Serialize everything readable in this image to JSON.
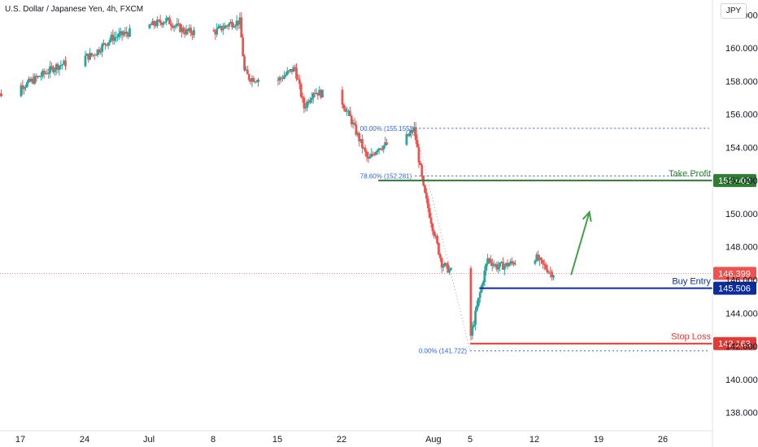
{
  "header": {
    "symbol_title": "U.S. Dollar / Japanese Yen, 4h, FXCM",
    "currency": "JPY"
  },
  "colors": {
    "up": "#26a69a",
    "down": "#ef5350",
    "take_profit": "#2e7d32",
    "buy_entry": "#0d2c9e",
    "stop_loss": "#e53935",
    "current_price": "#ef5350",
    "fib": "#2962ff",
    "arrow": "#43a047"
  },
  "chart_data": {
    "type": "candlestick",
    "x_ticks": [
      {
        "label": "17",
        "date": "2024-06-17"
      },
      {
        "label": "24",
        "date": "2024-06-24"
      },
      {
        "label": "Jul",
        "date": "2024-07-01"
      },
      {
        "label": "8",
        "date": "2024-07-08"
      },
      {
        "label": "15",
        "date": "2024-07-15"
      },
      {
        "label": "22",
        "date": "2024-07-22"
      },
      {
        "label": "Aug",
        "date": "2024-08-01"
      },
      {
        "label": "5",
        "date": "2024-08-05"
      },
      {
        "label": "12",
        "date": "2024-08-12"
      },
      {
        "label": "19",
        "date": "2024-08-19"
      },
      {
        "label": "26",
        "date": "2024-08-26"
      }
    ],
    "y_ticks": [
      "138.000",
      "140.000",
      "142.000",
      "144.000",
      "146.000",
      "148.000",
      "150.000",
      "152.000",
      "154.000",
      "156.000",
      "158.000",
      "160.000",
      "162.000"
    ],
    "ylim": [
      136.9,
      162.9
    ],
    "price_anchors": [
      {
        "date": "2024-06-14",
        "price": 157.0
      },
      {
        "date": "2024-06-18",
        "price": 157.9
      },
      {
        "date": "2024-06-21",
        "price": 158.9
      },
      {
        "date": "2024-06-25",
        "price": 159.6
      },
      {
        "date": "2024-06-27",
        "price": 160.6
      },
      {
        "date": "2024-07-01",
        "price": 161.3
      },
      {
        "date": "2024-07-03",
        "price": 161.7
      },
      {
        "date": "2024-07-05",
        "price": 161.0
      },
      {
        "date": "2024-07-08",
        "price": 160.9
      },
      {
        "date": "2024-07-10",
        "price": 161.5
      },
      {
        "date": "2024-07-11",
        "price": 161.6
      },
      {
        "date": "2024-07-11T12",
        "price": 158.6
      },
      {
        "date": "2024-07-12",
        "price": 158.2
      },
      {
        "date": "2024-07-15",
        "price": 158.0
      },
      {
        "date": "2024-07-17",
        "price": 158.8
      },
      {
        "date": "2024-07-18",
        "price": 156.4
      },
      {
        "date": "2024-07-19",
        "price": 157.4
      },
      {
        "date": "2024-07-22",
        "price": 156.9
      },
      {
        "date": "2024-07-23",
        "price": 155.8
      },
      {
        "date": "2024-07-25",
        "price": 153.2
      },
      {
        "date": "2024-07-26",
        "price": 154.0
      },
      {
        "date": "2024-07-29",
        "price": 154.5
      },
      {
        "date": "2024-07-30",
        "price": 155.1
      },
      {
        "date": "2024-07-31",
        "price": 151.5
      },
      {
        "date": "2024-08-01",
        "price": 149.2
      },
      {
        "date": "2024-08-02",
        "price": 147.0
      },
      {
        "date": "2024-08-03",
        "price": 146.5
      },
      {
        "date": "2024-08-05",
        "price": 142.2
      },
      {
        "date": "2024-08-06",
        "price": 144.8
      },
      {
        "date": "2024-08-07",
        "price": 147.3
      },
      {
        "date": "2024-08-08",
        "price": 146.8
      },
      {
        "date": "2024-08-09",
        "price": 146.9
      },
      {
        "date": "2024-08-12",
        "price": 147.5
      },
      {
        "date": "2024-08-13",
        "price": 146.9
      },
      {
        "date": "2024-08-14",
        "price": 146.4
      }
    ],
    "fib_levels": [
      {
        "label": "00.00% (155.155)",
        "price": 155.155,
        "start": "2024-07-30"
      },
      {
        "label": "78.60% (152.281)",
        "price": 152.281,
        "start": "2024-07-30"
      },
      {
        "label": "0.00% (141.722)",
        "price": 141.722,
        "start": "2024-08-05"
      }
    ],
    "levels": [
      {
        "name": "Take Profit",
        "price": 152.002,
        "price_label": "152.002",
        "start": "2024-07-26",
        "color_key": "take_profit"
      },
      {
        "name": "Buy Entry",
        "price": 145.506,
        "price_label": "145.506",
        "start": "2024-08-06",
        "color_key": "buy_entry"
      },
      {
        "name": "Stop Loss",
        "price": 142.163,
        "price_label": "142.163",
        "start": "2024-08-05",
        "color_key": "stop_loss"
      }
    ],
    "current_price": {
      "price": 146.399,
      "label": "146.399"
    },
    "arrow": {
      "from": {
        "date": "2024-08-16",
        "price": 146.3
      },
      "to": {
        "date": "2024-08-18",
        "price": 150.1
      }
    }
  }
}
